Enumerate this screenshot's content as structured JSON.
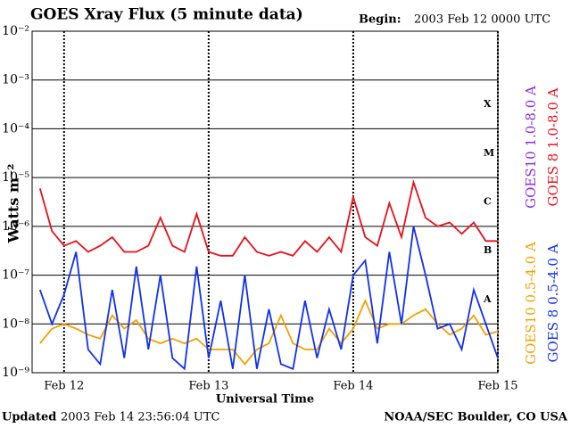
{
  "chart_data": {
    "type": "line",
    "title": "GOES Xray Flux (5 minute data)",
    "begin_label": "Begin:",
    "begin_date": "2003 Feb 12 0000 UTC",
    "x_label": "Universal Time",
    "y_label": "Watts m⁻²",
    "updated_label": "Updated",
    "updated_date": "2003 Feb 14 23:56:04 UTC",
    "credit": "NOAA/SEC Boulder, CO USA",
    "flare_classes": [
      "X",
      "M",
      "C",
      "B",
      "A"
    ],
    "log_y": true,
    "grid": true,
    "xlim": [
      -5.3,
      72
    ],
    "xticks": [
      {
        "value": 0,
        "label": "Feb 12"
      },
      {
        "value": 24,
        "label": "Feb 13"
      },
      {
        "value": 48,
        "label": "Feb 14"
      },
      {
        "value": 72,
        "label": "Feb 15"
      }
    ],
    "ylim": [
      1e-09,
      0.01
    ],
    "yticks": [
      {
        "value": 0.01,
        "label": "10⁻²"
      },
      {
        "value": 0.001,
        "label": "10⁻³"
      },
      {
        "value": 0.0001,
        "label": "10⁻⁴"
      },
      {
        "value": 1e-05,
        "label": "10⁻⁵"
      },
      {
        "value": 1e-06,
        "label": "10⁻⁶"
      },
      {
        "value": 1e-07,
        "label": "10⁻⁷"
      },
      {
        "value": 1e-08,
        "label": "10⁻⁸"
      },
      {
        "value": 1e-09,
        "label": "10⁻⁹"
      }
    ],
    "x": [
      -4,
      -2,
      0,
      2,
      4,
      6,
      8,
      10,
      12,
      14,
      16,
      18,
      20,
      22,
      24,
      26,
      28,
      30,
      32,
      34,
      36,
      38,
      40,
      42,
      44,
      46,
      48,
      50,
      52,
      54,
      56,
      58,
      60,
      62,
      64,
      66,
      68,
      70,
      72
    ],
    "series": [
      {
        "name": "GOES10 1.0-8.0 A",
        "color": "#8a2be2",
        "values": [
          null,
          null,
          null,
          null,
          null,
          null,
          null,
          null,
          null,
          null,
          null,
          null,
          null,
          null,
          null,
          null,
          null,
          null,
          null,
          null,
          null,
          null,
          null,
          null,
          null,
          null,
          null,
          null,
          null,
          null,
          null,
          null,
          null,
          null,
          null,
          null,
          null,
          null,
          null
        ]
      },
      {
        "name": "GOES 8 1.0-8.0 A",
        "color": "#e8101a",
        "values": [
          6e-06,
          8e-07,
          4e-07,
          5e-07,
          3e-07,
          4e-07,
          6e-07,
          3e-07,
          3e-07,
          4e-07,
          1.5e-06,
          4e-07,
          3e-07,
          1.8e-06,
          3e-07,
          2.5e-07,
          2.5e-07,
          6e-07,
          3e-07,
          2.5e-07,
          3e-07,
          2.5e-07,
          5e-07,
          3e-07,
          6e-07,
          3e-07,
          4e-06,
          6e-07,
          4e-07,
          3e-06,
          6e-07,
          8e-06,
          1.5e-06,
          1e-06,
          1.2e-06,
          7e-07,
          1.2e-06,
          5e-07,
          5e-07
        ]
      },
      {
        "name": "GOES10 0.5-4.0 A",
        "color": "#f5a000",
        "values": [
          4e-09,
          8e-09,
          1e-08,
          8e-09,
          6e-09,
          5e-09,
          1.5e-08,
          8e-09,
          1.2e-08,
          5e-09,
          4e-09,
          5e-09,
          4e-09,
          5e-09,
          3e-09,
          3e-09,
          3e-09,
          1.5e-09,
          3e-09,
          4e-09,
          1.5e-08,
          4e-09,
          3e-09,
          3e-09,
          8e-09,
          4e-09,
          8e-09,
          3e-08,
          8e-09,
          1e-08,
          1e-08,
          1.5e-08,
          2e-08,
          1e-08,
          6e-09,
          8e-09,
          1.5e-08,
          6e-09,
          7e-09
        ]
      },
      {
        "name": "GOES 8 0.5-4.0 A",
        "color": "#1030f0",
        "values": [
          5e-08,
          1e-08,
          4e-08,
          3e-07,
          3e-09,
          1.5e-09,
          5e-08,
          2e-09,
          1.5e-07,
          3e-09,
          1e-07,
          2e-09,
          1.2e-09,
          1.5e-07,
          2e-09,
          3e-08,
          1.2e-09,
          1e-07,
          1.2e-09,
          2e-08,
          1.5e-09,
          1.2e-09,
          3e-08,
          2e-09,
          2e-08,
          3e-09,
          1e-07,
          2e-07,
          4e-09,
          3e-07,
          1e-08,
          1e-06,
          1e-07,
          8e-09,
          1e-08,
          3e-09,
          5e-08,
          1e-08,
          2e-09
        ]
      }
    ]
  }
}
